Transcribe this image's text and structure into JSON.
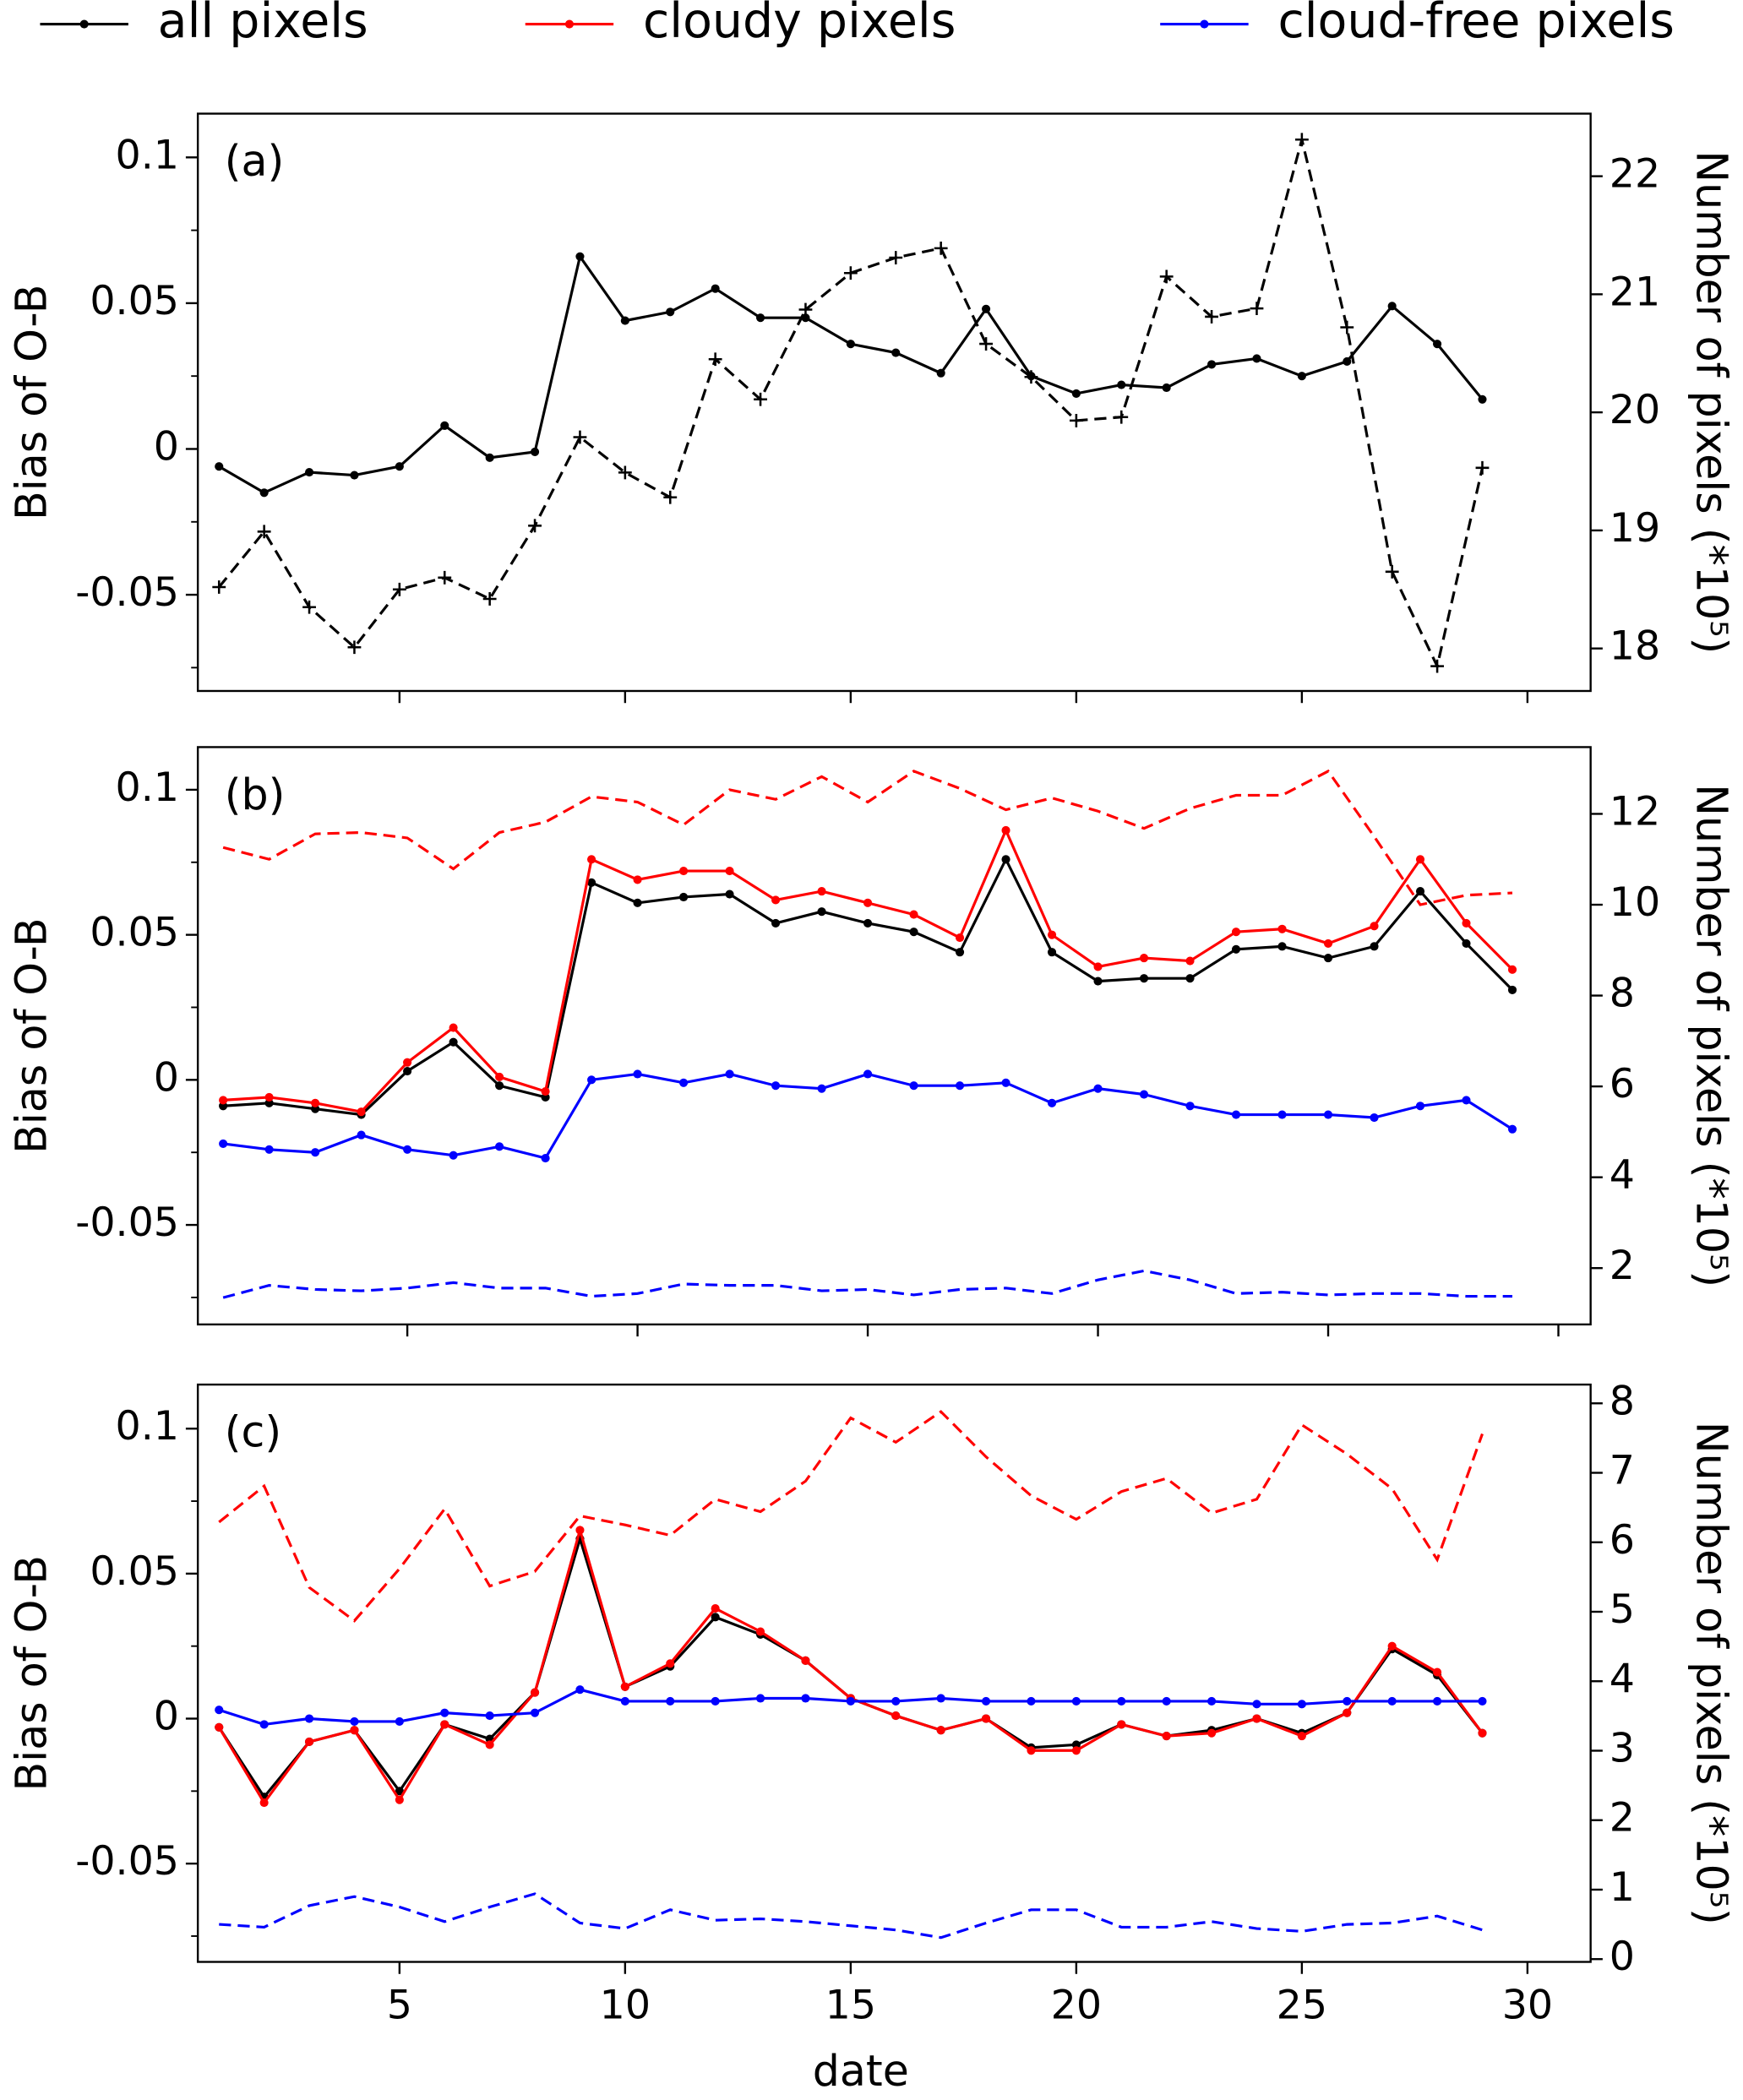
{
  "chart_data": [
    {
      "type": "line",
      "label": "(a)",
      "ylabel": "Bias of O-B",
      "y2label": "Number of pixels (*10⁵)",
      "x": [
        1,
        2,
        3,
        4,
        5,
        6,
        7,
        8,
        9,
        10,
        11,
        12,
        13,
        14,
        15,
        16,
        17,
        18,
        19,
        20,
        21,
        22,
        23,
        24,
        25,
        26,
        27,
        28,
        29
      ],
      "xlim": [
        0.53,
        31.4
      ],
      "xticks": [
        5,
        10,
        15,
        20,
        25,
        30
      ],
      "xticklabels": false,
      "ylim": [
        -0.083,
        0.115
      ],
      "yticks": [
        -0.05,
        0,
        0.05,
        0.1
      ],
      "yminorticks": [
        -0.075,
        -0.025,
        0.025,
        0.075
      ],
      "y2lim": [
        17.64,
        22.53
      ],
      "y2ticks": [
        18,
        19,
        20,
        21,
        22
      ],
      "series": [
        {
          "name": "all pixels",
          "color": "#000000",
          "style": "solid",
          "marker": "o",
          "values": [
            -0.006,
            -0.015,
            -0.008,
            -0.009,
            -0.006,
            0.008,
            -0.003,
            -0.001,
            0.066,
            0.044,
            0.047,
            0.055,
            0.045,
            0.045,
            0.036,
            0.033,
            0.026,
            0.048,
            0.025,
            0.019,
            0.022,
            0.021,
            0.029,
            0.031,
            0.025,
            0.03,
            0.049,
            0.036,
            0.017
          ]
        },
        {
          "name": "all pixels",
          "color": "#000000",
          "style": "dashed",
          "marker": "+",
          "axis": "y2",
          "values": [
            18.52,
            18.99,
            18.35,
            18.01,
            18.5,
            18.6,
            18.42,
            19.04,
            19.79,
            19.49,
            19.28,
            20.45,
            20.11,
            20.87,
            21.18,
            21.31,
            21.39,
            20.58,
            20.3,
            19.93,
            19.96,
            21.15,
            20.81,
            20.88,
            22.31,
            20.72,
            18.65,
            17.85,
            19.53
          ]
        }
      ]
    },
    {
      "type": "line",
      "label": "(b)",
      "ylabel": "Bias of O-B",
      "y2label": "Number of pixels (*10⁵)",
      "legend": "top",
      "x": [
        1,
        2,
        3,
        4,
        5,
        6,
        7,
        8,
        9,
        10,
        11,
        12,
        13,
        14,
        15,
        16,
        17,
        18,
        19,
        20,
        21,
        22,
        23,
        24,
        25,
        26,
        27,
        28,
        29
      ],
      "xlim": [
        0.45,
        30.7
      ],
      "xticks": [
        5,
        10,
        15,
        20,
        25,
        30
      ],
      "xticklabels": false,
      "ylim": [
        -0.0843,
        0.1147
      ],
      "yticks": [
        -0.05,
        0,
        0.05,
        0.1
      ],
      "yminorticks": [
        -0.075,
        -0.025,
        0.025,
        0.075
      ],
      "y2lim": [
        0.76,
        13.47
      ],
      "y2ticks": [
        2,
        4,
        6,
        8,
        10,
        12
      ],
      "series": [
        {
          "name": "all pixels",
          "color": "#000000",
          "style": "solid",
          "marker": "o",
          "values": [
            -0.009,
            -0.008,
            -0.01,
            -0.012,
            0.003,
            0.013,
            -0.002,
            -0.006,
            0.068,
            0.061,
            0.063,
            0.064,
            0.054,
            0.058,
            0.054,
            0.051,
            0.044,
            0.076,
            0.044,
            0.034,
            0.035,
            0.035,
            0.045,
            0.046,
            0.042,
            0.046,
            0.065,
            0.047,
            0.031
          ]
        },
        {
          "name": "cloudy pixels",
          "color": "#ff0000",
          "style": "solid",
          "marker": "o",
          "values": [
            -0.007,
            -0.006,
            -0.008,
            -0.011,
            0.006,
            0.018,
            0.001,
            -0.004,
            0.076,
            0.069,
            0.072,
            0.072,
            0.062,
            0.065,
            0.061,
            0.057,
            0.049,
            0.086,
            0.05,
            0.039,
            0.042,
            0.041,
            0.051,
            0.052,
            0.047,
            0.053,
            0.076,
            0.054,
            0.038
          ]
        },
        {
          "name": "cloud-free pixels",
          "color": "#0000ff",
          "style": "solid",
          "marker": "o",
          "values": [
            -0.022,
            -0.024,
            -0.025,
            -0.019,
            -0.024,
            -0.026,
            -0.023,
            -0.027,
            0.0,
            0.002,
            -0.001,
            0.002,
            -0.002,
            -0.003,
            0.002,
            -0.002,
            -0.002,
            -0.001,
            -0.008,
            -0.003,
            -0.005,
            -0.009,
            -0.012,
            -0.012,
            -0.012,
            -0.013,
            -0.009,
            -0.007,
            -0.017
          ]
        },
        {
          "name": "cloudy pixels",
          "color": "#ff0000",
          "style": "dashed",
          "axis": "y2",
          "values": [
            11.26,
            11.0,
            11.56,
            11.59,
            11.47,
            10.79,
            11.59,
            11.82,
            12.38,
            12.26,
            11.76,
            12.53,
            12.32,
            12.82,
            12.26,
            12.94,
            12.56,
            12.09,
            12.35,
            12.06,
            11.68,
            12.12,
            12.41,
            12.41,
            12.94,
            11.5,
            10.0,
            10.21,
            10.26
          ]
        },
        {
          "name": "cloud-free pixels",
          "color": "#0000ff",
          "style": "dashed",
          "axis": "y2",
          "values": [
            1.35,
            1.62,
            1.53,
            1.5,
            1.56,
            1.68,
            1.56,
            1.56,
            1.38,
            1.44,
            1.65,
            1.62,
            1.62,
            1.5,
            1.53,
            1.41,
            1.53,
            1.56,
            1.44,
            1.74,
            1.94,
            1.74,
            1.44,
            1.47,
            1.41,
            1.44,
            1.44,
            1.38,
            1.38
          ]
        }
      ]
    },
    {
      "type": "line",
      "label": "(c)",
      "ylabel": "Bias of O-B",
      "y2label": "Number of pixels (*10⁵)",
      "xlabel": "date",
      "x": [
        1,
        2,
        3,
        4,
        5,
        6,
        7,
        8,
        9,
        10,
        11,
        12,
        13,
        14,
        15,
        16,
        17,
        18,
        19,
        20,
        21,
        22,
        23,
        24,
        25,
        26,
        27,
        28,
        29
      ],
      "xlim": [
        0.53,
        31.4
      ],
      "xticks": [
        5,
        10,
        15,
        20,
        25,
        30
      ],
      "xticklabels": true,
      "ylim": [
        -0.0839,
        0.1152
      ],
      "yticks": [
        -0.05,
        0,
        0.05,
        0.1
      ],
      "yminorticks": [
        -0.075,
        -0.025,
        0.025,
        0.075
      ],
      "y2lim": [
        -0.04,
        8.27
      ],
      "y2ticks": [
        0,
        1,
        2,
        3,
        4,
        5,
        6,
        7,
        8
      ],
      "series": [
        {
          "name": "all pixels",
          "color": "#000000",
          "style": "solid",
          "marker": "o",
          "values": [
            -0.003,
            -0.027,
            -0.008,
            -0.004,
            -0.025,
            -0.002,
            -0.007,
            0.009,
            0.062,
            0.011,
            0.018,
            0.035,
            0.029,
            0.02,
            0.007,
            0.001,
            -0.004,
            0.0,
            -0.01,
            -0.009,
            -0.002,
            -0.006,
            -0.004,
            0.0,
            -0.005,
            0.002,
            0.024,
            0.015,
            -0.005
          ]
        },
        {
          "name": "cloudy pixels",
          "color": "#ff0000",
          "style": "solid",
          "marker": "o",
          "values": [
            -0.003,
            -0.029,
            -0.008,
            -0.004,
            -0.028,
            -0.002,
            -0.009,
            0.009,
            0.065,
            0.011,
            0.019,
            0.038,
            0.03,
            0.02,
            0.007,
            0.001,
            -0.004,
            0.0,
            -0.011,
            -0.011,
            -0.002,
            -0.006,
            -0.005,
            0.0,
            -0.006,
            0.002,
            0.025,
            0.016,
            -0.005
          ]
        },
        {
          "name": "cloud-free pixels",
          "color": "#0000ff",
          "style": "solid",
          "marker": "o",
          "values": [
            0.003,
            -0.002,
            0.0,
            -0.001,
            -0.001,
            0.002,
            0.001,
            0.002,
            0.01,
            0.006,
            0.006,
            0.006,
            0.007,
            0.007,
            0.006,
            0.006,
            0.007,
            0.006,
            0.006,
            0.006,
            0.006,
            0.006,
            0.006,
            0.005,
            0.005,
            0.006,
            0.006,
            0.006,
            0.006
          ]
        },
        {
          "name": "cloudy pixels",
          "color": "#ff0000",
          "style": "dashed",
          "axis": "y2",
          "values": [
            6.29,
            6.81,
            5.35,
            4.87,
            5.62,
            6.48,
            5.37,
            5.58,
            6.38,
            6.25,
            6.1,
            6.62,
            6.44,
            6.88,
            7.79,
            7.44,
            7.88,
            7.23,
            6.67,
            6.33,
            6.73,
            6.92,
            6.42,
            6.62,
            7.69,
            7.27,
            6.77,
            5.75,
            7.56
          ]
        },
        {
          "name": "cloud-free pixels",
          "color": "#0000ff",
          "style": "dashed",
          "axis": "y2",
          "values": [
            0.5,
            0.46,
            0.77,
            0.9,
            0.75,
            0.54,
            0.75,
            0.94,
            0.52,
            0.44,
            0.71,
            0.56,
            0.58,
            0.54,
            0.48,
            0.42,
            0.31,
            0.52,
            0.71,
            0.71,
            0.46,
            0.46,
            0.54,
            0.44,
            0.4,
            0.5,
            0.52,
            0.62,
            0.42
          ]
        }
      ]
    }
  ]
}
